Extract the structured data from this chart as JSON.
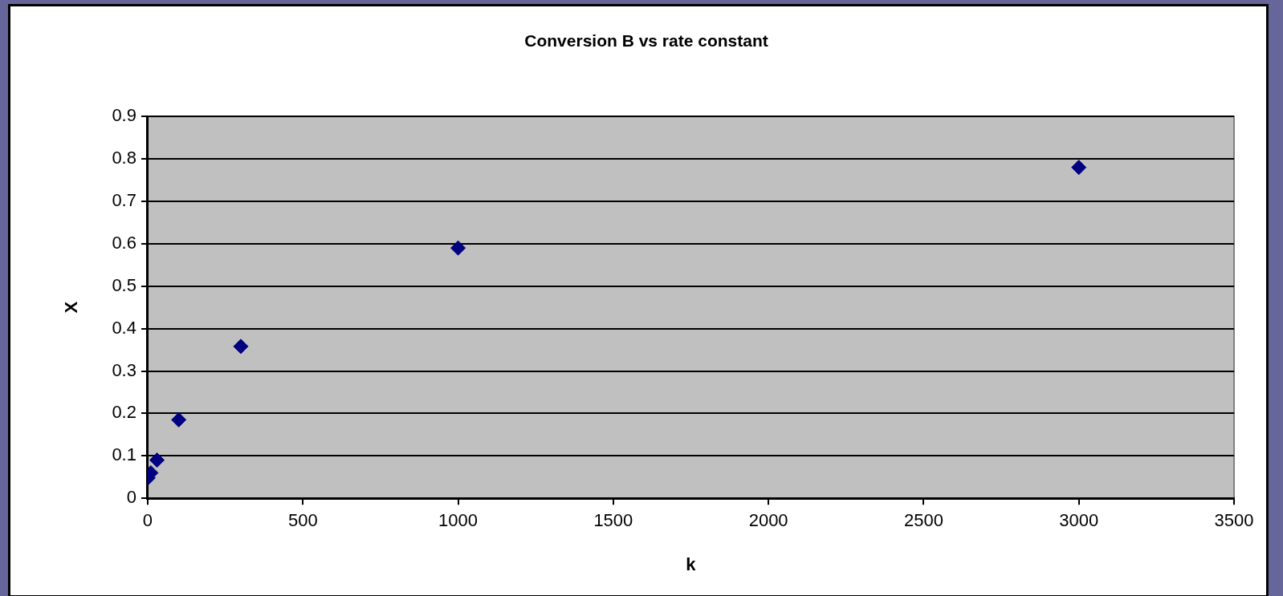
{
  "chart_data": {
    "type": "scatter",
    "title": "Conversion B vs rate constant",
    "xlabel": "k",
    "ylabel": "X",
    "x": [
      1,
      10,
      30,
      100,
      300,
      1000,
      3000
    ],
    "series": [
      {
        "color": "#000080",
        "values": [
          0.048,
          0.06,
          0.09,
          0.185,
          0.358,
          0.59,
          0.78
        ]
      }
    ],
    "xlim": [
      0,
      3500
    ],
    "xticks": [
      0,
      500,
      1000,
      1500,
      2000,
      2500,
      3000,
      3500
    ],
    "ylim": [
      0,
      0.9
    ],
    "yticks": [
      0,
      0.1,
      0.2,
      0.3,
      0.4,
      0.5,
      0.6,
      0.7,
      0.8,
      0.9
    ],
    "grid": "y",
    "legend": false,
    "marker": "diamond"
  }
}
